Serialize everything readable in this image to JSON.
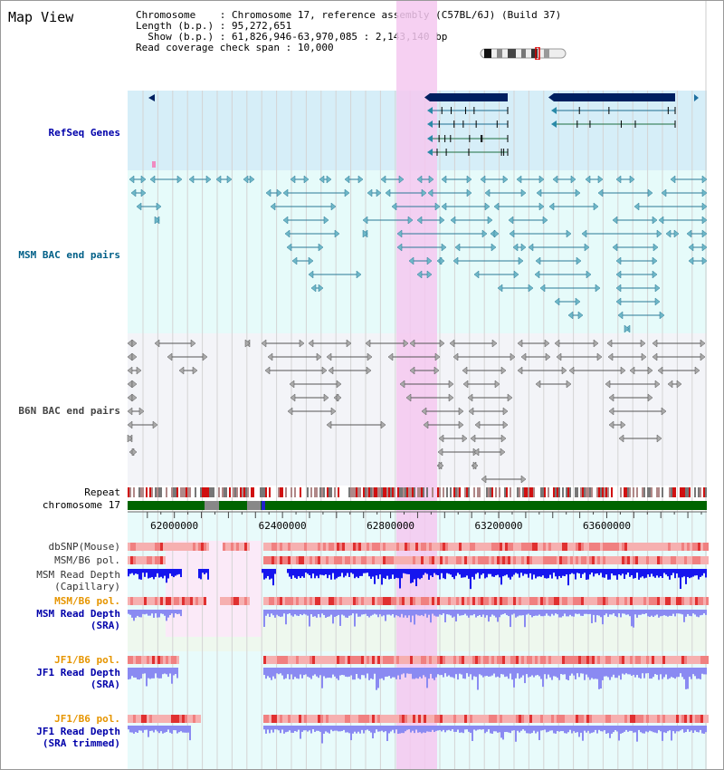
{
  "title": "Map View",
  "info": {
    "chromosome_key": "Chromosome",
    "chromosome": "Chromosome 17, reference assembly (C57BL/6J) (Build 37)",
    "length_key": "Length (b.p.)",
    "length": "95,272,651",
    "show_key": "Show (b.p.)",
    "show": "61,826,946-63,970,085 : 2,143,140 bp",
    "coverage_key": "Read coverage check span",
    "coverage": "10,000"
  },
  "axis": {
    "range_start": 61826946,
    "range_end": 63970085,
    "tick_labels": [
      "62000000",
      "62400000",
      "62800000",
      "63200000",
      "63600000"
    ],
    "tick_values": [
      62000000,
      62400000,
      62800000,
      63200000,
      63600000
    ]
  },
  "tracks": {
    "refseq": {
      "label": "RefSeq Genes",
      "color": "#0000aa"
    },
    "msm_bac": {
      "label": "MSM BAC end pairs",
      "color": "#005f87"
    },
    "b6n_bac": {
      "label": "B6N BAC end pairs",
      "color": "#444444"
    },
    "repeat": {
      "label": "Repeat",
      "color": "#000000"
    },
    "chromosome": {
      "label": "chromosome 17",
      "color": "#000000"
    },
    "dbsnp": {
      "label": "dbSNP(Mouse)",
      "color": "#333333"
    },
    "msm_b6_pol_1": {
      "label": "MSM/B6 pol.",
      "color": "#333333"
    },
    "msm_depth_cap": {
      "label_1": "MSM Read Depth",
      "label_2": "(Capillary)",
      "color": "#333333"
    },
    "msm_b6_pol_2": {
      "label": "MSM/B6 pol.",
      "color": "#e69500"
    },
    "msm_depth_sra": {
      "label_1": "MSM Read Depth",
      "label_2": "(SRA)",
      "color": "#0000aa"
    },
    "jf1_b6_pol_1": {
      "label": "JF1/B6 pol.",
      "color": "#e69500"
    },
    "jf1_depth_sra": {
      "label_1": "JF1 Read Depth",
      "label_2": "(SRA)",
      "color": "#0000aa"
    },
    "jf1_b6_pol_2": {
      "label": "JF1/B6 pol.",
      "color": "#e69500"
    },
    "jf1_depth_trim": {
      "label_1": "JF1 Read Depth",
      "label_2": "(SRA trimmed)",
      "color": "#0000aa"
    }
  },
  "colors": {
    "highlight": "#f5c8f0",
    "refseq_bg": "#d6eef8",
    "msm_bg": "#e6fbfa",
    "b6n_bg": "#f3f4f8",
    "chrom_green": "#006400",
    "snp_red": "#e03030",
    "depth_blue": "#1515ee",
    "depth_light": "#8a8af2"
  }
}
